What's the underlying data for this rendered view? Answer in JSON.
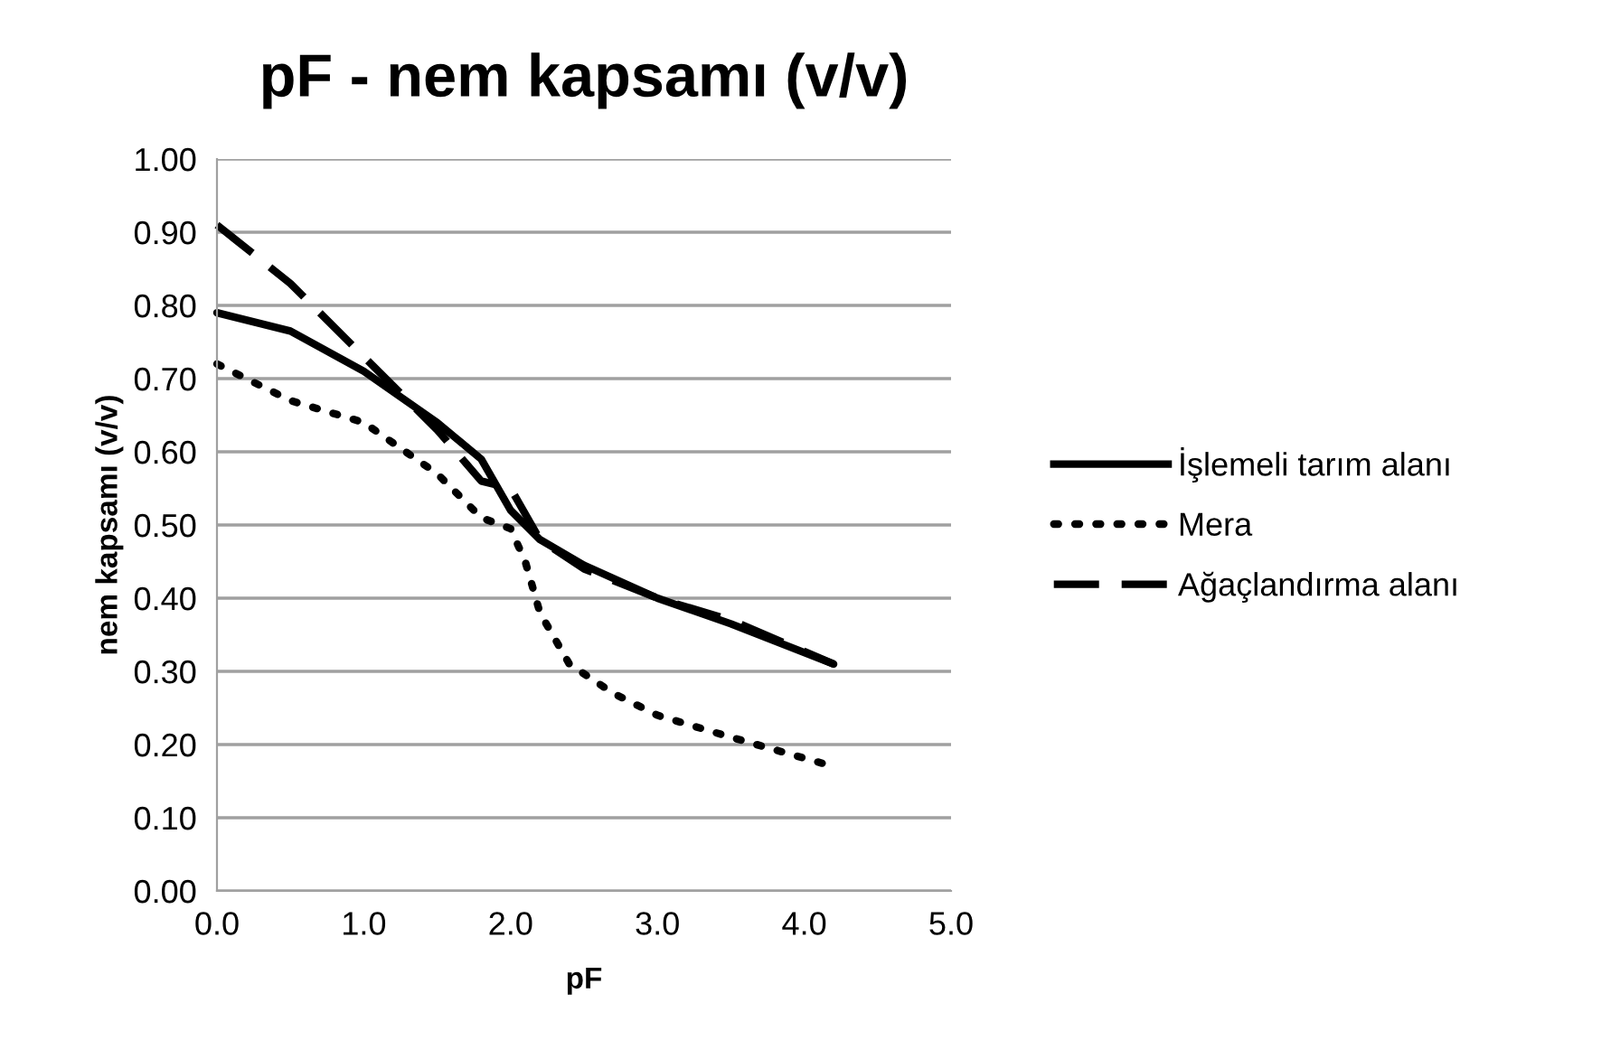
{
  "chart_data": {
    "type": "line",
    "title": "pF - nem kapsamı (v/v)",
    "xlabel": "pF",
    "ylabel": "nem kapsamı (v/v)",
    "xlim": [
      0,
      5
    ],
    "xticks": [
      {
        "value": 0,
        "label": "0.0"
      },
      {
        "value": 1,
        "label": "1.0"
      },
      {
        "value": 2,
        "label": "2.0"
      },
      {
        "value": 3,
        "label": "3.0"
      },
      {
        "value": 4,
        "label": "4.0"
      },
      {
        "value": 5,
        "label": "5.0"
      }
    ],
    "ylim": [
      0,
      1
    ],
    "yticks": [
      {
        "value": 0,
        "label": "0.00"
      },
      {
        "value": 0.1,
        "label": "0.10"
      },
      {
        "value": 0.2,
        "label": "0.20"
      },
      {
        "value": 0.3,
        "label": "0.30"
      },
      {
        "value": 0.4,
        "label": "0.40"
      },
      {
        "value": 0.5,
        "label": "0.50"
      },
      {
        "value": 0.6,
        "label": "0.60"
      },
      {
        "value": 0.7,
        "label": "0.70"
      },
      {
        "value": 0.8,
        "label": "0.80"
      },
      {
        "value": 0.9,
        "label": "0.90"
      },
      {
        "value": 1,
        "label": "1.00"
      }
    ],
    "grid": "y",
    "legend": "right",
    "marker": "none",
    "series": [
      {
        "name": "İşlemeli tarım alanı",
        "color": "#000000",
        "line_style": "solid",
        "x": [
          0,
          0.5,
          1.0,
          1.5,
          1.8,
          2.0,
          2.2,
          2.5,
          3.0,
          3.5,
          4.2
        ],
        "values": [
          0.79,
          0.765,
          0.71,
          0.64,
          0.59,
          0.52,
          0.48,
          0.445,
          0.4,
          0.365,
          0.31
        ]
      },
      {
        "name": "Mera",
        "color": "#000000",
        "line_style": "dotted",
        "x": [
          0,
          0.5,
          1.0,
          1.5,
          1.8,
          2.0,
          2.1,
          2.2,
          2.4,
          2.7,
          3.0,
          3.5,
          4.2
        ],
        "values": [
          0.72,
          0.67,
          0.64,
          0.57,
          0.51,
          0.495,
          0.45,
          0.38,
          0.31,
          0.27,
          0.24,
          0.21,
          0.17
        ]
      },
      {
        "name": "Ağaçlandırma alanı",
        "color": "#000000",
        "line_style": "dashed",
        "x": [
          0,
          0.5,
          1.0,
          1.5,
          1.8,
          2.0,
          2.2,
          2.5,
          3.0,
          3.5,
          4.2
        ],
        "values": [
          0.91,
          0.83,
          0.73,
          0.63,
          0.56,
          0.55,
          0.48,
          0.44,
          0.4,
          0.37,
          0.31
        ]
      }
    ]
  }
}
